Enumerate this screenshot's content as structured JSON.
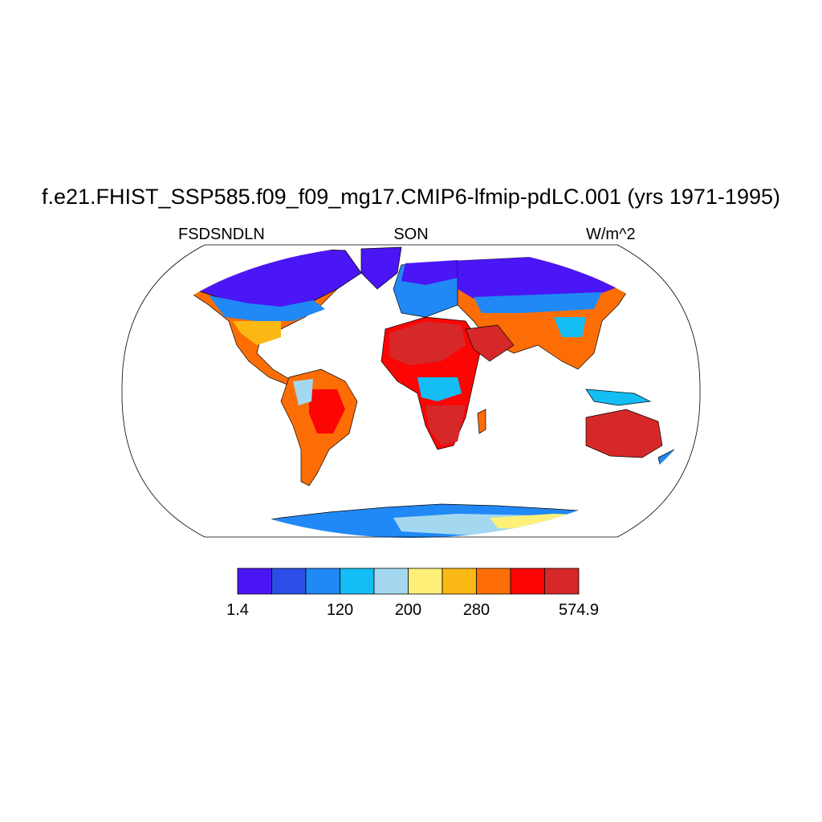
{
  "title": "f.e21.FHIST_SSP585.f09_f09_mg17.CMIP6-lfmip-pdLC.001 (yrs 1971-1995)",
  "variable": "FSDSNDLN",
  "season": "SON",
  "units": "W/m^2",
  "colorbar": {
    "colors": [
      "#4b16f5",
      "#2b4fe6",
      "#2189f5",
      "#14bef5",
      "#a3d8f0",
      "#fff07a",
      "#fcb814",
      "#fc6e05",
      "#fc0505",
      "#d62828"
    ],
    "tick_labels": [
      {
        "text": "1.4",
        "index": 0
      },
      {
        "text": "120",
        "index": 3
      },
      {
        "text": "200",
        "index": 5
      },
      {
        "text": "280",
        "index": 7
      },
      {
        "text": "574.9",
        "index": 10
      }
    ]
  }
}
